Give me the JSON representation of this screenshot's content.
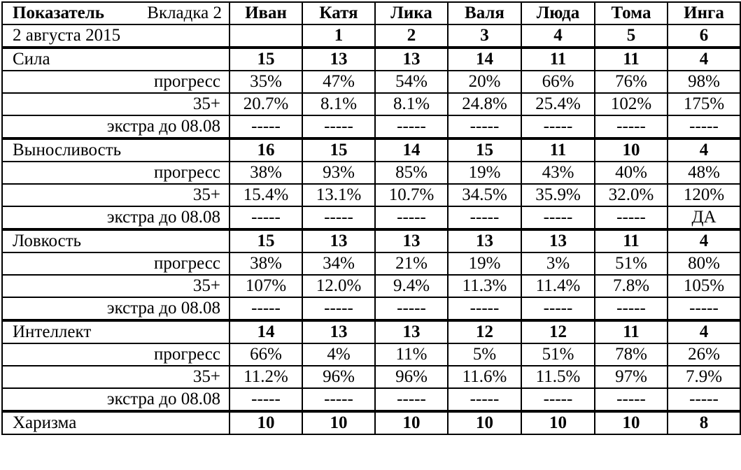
{
  "header": {
    "col_label": "Показатель",
    "tab": "Вкладка 2",
    "date": "2 августа 2015",
    "names": [
      "Иван",
      "Катя",
      "Лика",
      "Валя",
      "Люда",
      "Тома",
      "Инга"
    ],
    "numbers": [
      "",
      "1",
      "2",
      "3",
      "4",
      "5",
      "6"
    ]
  },
  "sub_labels": {
    "progress": "прогресс",
    "plus": "35+",
    "extra": "экстра до 08.08"
  },
  "stats": [
    {
      "name": "Сила",
      "values": [
        "15",
        "13",
        "13",
        "14",
        "11",
        "11",
        "4"
      ],
      "progress": [
        "35%",
        "47%",
        "54%",
        "20%",
        "66%",
        "76%",
        "98%"
      ],
      "plus": [
        "20.7%",
        "8.1%",
        "8.1%",
        "24.8%",
        "25.4%",
        "102%",
        "175%"
      ],
      "extra": [
        "-----",
        "-----",
        "-----",
        "-----",
        "-----",
        "-----",
        "-----"
      ]
    },
    {
      "name": "Выносливость",
      "values": [
        "16",
        "15",
        "14",
        "15",
        "11",
        "10",
        "4"
      ],
      "progress": [
        "38%",
        "93%",
        "85%",
        "19%",
        "43%",
        "40%",
        "48%"
      ],
      "plus": [
        "15.4%",
        "13.1%",
        "10.7%",
        "34.5%",
        "35.9%",
        "32.0%",
        "120%"
      ],
      "extra": [
        "-----",
        "-----",
        "-----",
        "-----",
        "-----",
        "-----",
        "ДА"
      ]
    },
    {
      "name": "Ловкость",
      "values": [
        "15",
        "13",
        "13",
        "13",
        "13",
        "11",
        "4"
      ],
      "progress": [
        "38%",
        "34%",
        "21%",
        "19%",
        "3%",
        "51%",
        "80%"
      ],
      "plus": [
        "107%",
        "12.0%",
        "9.4%",
        "11.3%",
        "11.4%",
        "7.8%",
        "105%"
      ],
      "extra": [
        "-----",
        "-----",
        "-----",
        "-----",
        "-----",
        "-----",
        "-----"
      ]
    },
    {
      "name": "Интеллект",
      "values": [
        "14",
        "13",
        "13",
        "12",
        "12",
        "11",
        "4"
      ],
      "progress": [
        "66%",
        "4%",
        "11%",
        "5%",
        "51%",
        "78%",
        "26%"
      ],
      "plus": [
        "11.2%",
        "96%",
        "96%",
        "11.6%",
        "11.5%",
        "97%",
        "7.9%"
      ],
      "extra": [
        "-----",
        "-----",
        "-----",
        "-----",
        "-----",
        "-----",
        "-----"
      ]
    },
    {
      "name": "Харизма",
      "values": [
        "10",
        "10",
        "10",
        "10",
        "10",
        "10",
        "8"
      ]
    }
  ]
}
